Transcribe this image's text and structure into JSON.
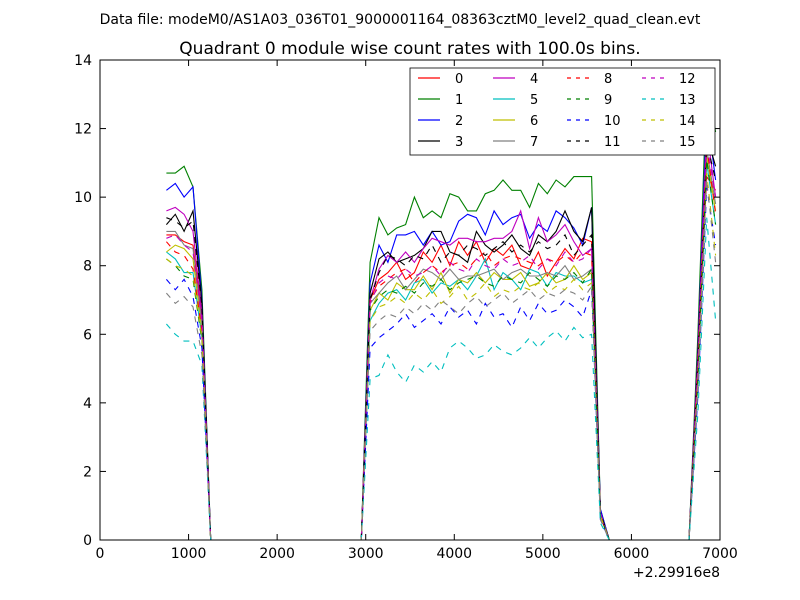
{
  "figure": {
    "suptitle": "Data file: modeM0/AS1A03_036T01_9000001164_08363cztM0_level2_quad_clean.evt"
  },
  "chart_data": {
    "type": "line",
    "title": "Quadrant 0 module wise count rates with 100.0s bins.",
    "xlabel": "",
    "ylabel": "",
    "x_offset_label": "+2.29916e8",
    "xlim": [
      0,
      7000
    ],
    "ylim": [
      0,
      14
    ],
    "x_ticks": [
      0,
      1000,
      2000,
      3000,
      4000,
      5000,
      6000,
      7000
    ],
    "y_ticks": [
      0,
      2,
      4,
      6,
      8,
      10,
      12,
      14
    ],
    "grid": false,
    "legend_position": "top-right",
    "x": [
      750,
      850,
      950,
      1050,
      1150,
      1250,
      1350,
      2850,
      2950,
      3050,
      3150,
      3250,
      3350,
      3450,
      3550,
      3650,
      3750,
      3850,
      3950,
      4050,
      4150,
      4250,
      4350,
      4450,
      4550,
      4650,
      4750,
      4850,
      4950,
      5050,
      5150,
      5250,
      5350,
      5450,
      5550,
      5650,
      5750,
      6650,
      6750,
      6850,
      6950
    ],
    "series": [
      {
        "name": "0",
        "color": "#ff0000",
        "dash": "solid",
        "values": [
          8.9,
          8.9,
          8.7,
          8.6,
          6.5,
          0,
          0,
          0,
          0,
          7.0,
          7.6,
          7.8,
          8.1,
          7.6,
          7.8,
          8.4,
          8.1,
          8.6,
          8.0,
          8.7,
          8.3,
          8.7,
          8.1,
          8.5,
          8.3,
          8.6,
          8.0,
          7.9,
          8.4,
          7.7,
          8.1,
          8.5,
          8.2,
          8.8,
          8.7,
          0.8,
          0,
          0,
          5.0,
          10.6,
          10.2
        ]
      },
      {
        "name": "1",
        "color": "#008000",
        "dash": "solid",
        "values": [
          10.7,
          10.7,
          10.9,
          10.3,
          7.3,
          0,
          0,
          0,
          0,
          8.1,
          9.4,
          8.9,
          9.1,
          9.2,
          10.0,
          9.4,
          9.6,
          9.4,
          10.1,
          10.0,
          9.6,
          9.6,
          10.1,
          10.2,
          10.5,
          10.2,
          10.2,
          9.7,
          10.4,
          10.1,
          10.5,
          10.3,
          10.6,
          10.6,
          10.6,
          0.9,
          0,
          0,
          6.0,
          13.3,
          11.9
        ]
      },
      {
        "name": "2",
        "color": "#0000ff",
        "dash": "solid",
        "values": [
          10.2,
          10.4,
          10.0,
          10.3,
          7.0,
          0,
          0,
          0,
          0,
          7.5,
          8.6,
          8.1,
          8.9,
          8.9,
          9.0,
          8.6,
          9.0,
          8.6,
          8.7,
          9.3,
          9.5,
          9.4,
          8.9,
          9.6,
          9.2,
          9.4,
          9.5,
          8.8,
          9.2,
          9.0,
          9.6,
          9.4,
          9.1,
          8.6,
          9.7,
          0.9,
          0,
          0,
          5.6,
          12.5,
          10.5
        ]
      },
      {
        "name": "3",
        "color": "#000000",
        "dash": "solid",
        "values": [
          9.2,
          9.5,
          9.0,
          9.6,
          6.9,
          0,
          0,
          0,
          0,
          7.2,
          8.2,
          8.4,
          8.1,
          8.2,
          8.3,
          8.5,
          9.0,
          9.0,
          8.4,
          8.3,
          8.1,
          9.0,
          8.6,
          8.4,
          8.6,
          8.9,
          8.5,
          8.3,
          8.9,
          8.7,
          9.0,
          9.6,
          9.0,
          8.7,
          9.7,
          0.8,
          0,
          0,
          5.5,
          11.8,
          10.9
        ]
      },
      {
        "name": "4",
        "color": "#bf00bf",
        "dash": "solid",
        "values": [
          9.6,
          9.7,
          9.5,
          9.0,
          6.6,
          0,
          0,
          0,
          0,
          7.0,
          7.9,
          8.3,
          8.1,
          8.4,
          8.1,
          8.5,
          8.8,
          8.7,
          8.6,
          8.8,
          8.8,
          8.7,
          8.7,
          8.8,
          8.8,
          9.0,
          9.6,
          8.5,
          9.4,
          8.7,
          8.9,
          9.2,
          8.7,
          8.3,
          8.5,
          0.8,
          0,
          0,
          5.4,
          12.0,
          10.0
        ]
      },
      {
        "name": "5",
        "color": "#00bfbf",
        "dash": "solid",
        "values": [
          8.4,
          8.2,
          7.8,
          7.8,
          5.9,
          0,
          0,
          0,
          0,
          6.4,
          6.9,
          7.2,
          7.3,
          7.0,
          7.5,
          7.6,
          7.2,
          7.5,
          7.4,
          7.6,
          7.3,
          7.7,
          8.2,
          7.3,
          7.8,
          7.6,
          7.3,
          7.9,
          7.8,
          7.4,
          7.8,
          7.7,
          7.7,
          7.5,
          7.6,
          0.7,
          0,
          0,
          4.6,
          11.0,
          9.2
        ]
      },
      {
        "name": "6",
        "color": "#bfbf00",
        "dash": "solid",
        "values": [
          8.4,
          8.6,
          8.5,
          8.2,
          6.1,
          0,
          0,
          0,
          0,
          6.7,
          7.2,
          7.0,
          7.5,
          7.3,
          7.3,
          7.7,
          7.3,
          7.8,
          7.2,
          7.6,
          7.5,
          7.8,
          7.5,
          7.8,
          7.6,
          7.6,
          7.8,
          7.4,
          7.5,
          7.8,
          7.5,
          7.6,
          8.0,
          7.6,
          7.8,
          0.7,
          0,
          0,
          4.7,
          11.2,
          9.6
        ]
      },
      {
        "name": "7",
        "color": "#808080",
        "dash": "solid",
        "values": [
          9.0,
          9.0,
          8.6,
          8.5,
          6.3,
          0,
          0,
          0,
          0,
          6.9,
          7.2,
          7.5,
          7.7,
          7.3,
          7.6,
          7.9,
          7.8,
          7.6,
          7.9,
          7.6,
          7.7,
          7.7,
          7.8,
          7.9,
          7.6,
          7.8,
          7.9,
          7.7,
          7.7,
          7.8,
          7.7,
          8.0,
          7.6,
          7.7,
          7.9,
          0.7,
          0,
          0,
          4.8,
          11.4,
          9.8
        ]
      },
      {
        "name": "8",
        "color": "#ff0000",
        "dash": "dashed",
        "values": [
          8.7,
          8.4,
          8.3,
          7.9,
          6.1,
          0,
          0,
          0,
          0,
          7.0,
          7.4,
          7.6,
          7.8,
          7.9,
          7.5,
          7.8,
          8.0,
          7.8,
          8.0,
          8.1,
          7.9,
          8.2,
          8.4,
          8.0,
          8.2,
          8.3,
          8.2,
          8.1,
          8.0,
          8.2,
          8.1,
          8.3,
          8.1,
          8.4,
          8.3,
          0.7,
          0,
          0,
          5.0,
          11.5,
          9.5
        ]
      },
      {
        "name": "9",
        "color": "#008000",
        "dash": "dashed",
        "values": [
          8.2,
          8.0,
          7.7,
          7.6,
          5.8,
          0,
          0,
          0,
          0,
          6.7,
          7.1,
          7.3,
          7.2,
          7.4,
          7.2,
          7.5,
          7.4,
          7.6,
          7.3,
          7.5,
          7.6,
          7.7,
          7.5,
          7.4,
          7.7,
          7.6,
          7.5,
          7.8,
          7.6,
          7.4,
          7.7,
          7.6,
          7.8,
          7.5,
          7.9,
          0.7,
          0,
          0,
          4.7,
          11.1,
          9.2
        ]
      },
      {
        "name": "10",
        "color": "#0000ff",
        "dash": "dashed",
        "values": [
          7.6,
          7.3,
          7.6,
          7.1,
          5.6,
          0,
          0,
          0,
          0,
          5.6,
          5.9,
          6.1,
          6.3,
          6.6,
          6.2,
          6.4,
          6.6,
          6.3,
          6.8,
          6.5,
          6.7,
          6.3,
          6.9,
          6.5,
          6.6,
          6.2,
          6.8,
          6.4,
          6.9,
          6.6,
          6.7,
          7.0,
          6.8,
          6.5,
          7.3,
          0.6,
          0,
          0,
          4.2,
          10.3,
          8.6
        ]
      },
      {
        "name": "11",
        "color": "#000000",
        "dash": "dashed",
        "values": [
          9.4,
          9.3,
          9.1,
          9.3,
          6.8,
          0,
          0,
          0,
          0,
          7.0,
          7.8,
          8.3,
          8.2,
          8.0,
          8.3,
          8.2,
          8.6,
          8.1,
          8.4,
          8.3,
          8.6,
          8.5,
          8.3,
          8.5,
          8.7,
          8.4,
          8.6,
          8.4,
          8.7,
          8.5,
          8.6,
          8.9,
          8.3,
          8.6,
          8.9,
          0.8,
          0,
          0,
          5.3,
          11.6,
          10.5
        ]
      },
      {
        "name": "12",
        "color": "#bf00bf",
        "dash": "dashed",
        "values": [
          8.8,
          8.9,
          8.6,
          8.4,
          6.4,
          0,
          0,
          0,
          0,
          6.9,
          7.5,
          7.7,
          7.6,
          7.9,
          7.7,
          7.8,
          8.0,
          7.7,
          8.1,
          7.9,
          7.8,
          8.2,
          8.0,
          7.9,
          8.2,
          8.0,
          8.1,
          8.3,
          7.9,
          8.2,
          8.0,
          8.4,
          8.1,
          8.2,
          8.5,
          0.7,
          0,
          0,
          5.1,
          11.6,
          10.0
        ]
      },
      {
        "name": "13",
        "color": "#00bfbf",
        "dash": "dashed",
        "values": [
          6.3,
          6.0,
          5.8,
          5.8,
          5.1,
          0,
          0,
          0,
          0,
          4.7,
          4.8,
          5.4,
          4.9,
          4.6,
          5.1,
          4.9,
          5.2,
          4.9,
          5.6,
          5.8,
          5.6,
          5.3,
          5.4,
          5.7,
          5.5,
          5.4,
          5.6,
          5.9,
          5.6,
          5.9,
          6.1,
          5.8,
          6.2,
          5.9,
          6.0,
          0.5,
          0,
          0,
          3.7,
          9.4,
          6.4
        ]
      },
      {
        "name": "14",
        "color": "#bfbf00",
        "dash": "dashed",
        "values": [
          8.2,
          8.0,
          7.9,
          7.7,
          5.9,
          0,
          0,
          0,
          0,
          6.4,
          6.8,
          6.9,
          7.1,
          6.9,
          7.2,
          7.0,
          7.3,
          6.9,
          7.1,
          7.4,
          7.0,
          7.2,
          7.5,
          7.1,
          7.3,
          7.2,
          7.4,
          7.3,
          7.5,
          7.2,
          7.4,
          7.3,
          7.6,
          7.3,
          7.5,
          0.7,
          0,
          0,
          4.6,
          10.7,
          8.3
        ]
      },
      {
        "name": "15",
        "color": "#808080",
        "dash": "dashed",
        "values": [
          7.2,
          6.9,
          7.1,
          6.8,
          5.4,
          0,
          0,
          0,
          0,
          6.1,
          6.4,
          6.6,
          6.5,
          6.8,
          6.6,
          6.9,
          6.7,
          7.0,
          6.8,
          6.6,
          6.9,
          7.1,
          6.8,
          7.0,
          7.2,
          6.9,
          7.1,
          7.3,
          7.0,
          7.2,
          7.1,
          7.3,
          7.2,
          7.0,
          7.4,
          0.6,
          0,
          0,
          4.4,
          10.5,
          8.1
        ]
      }
    ]
  }
}
